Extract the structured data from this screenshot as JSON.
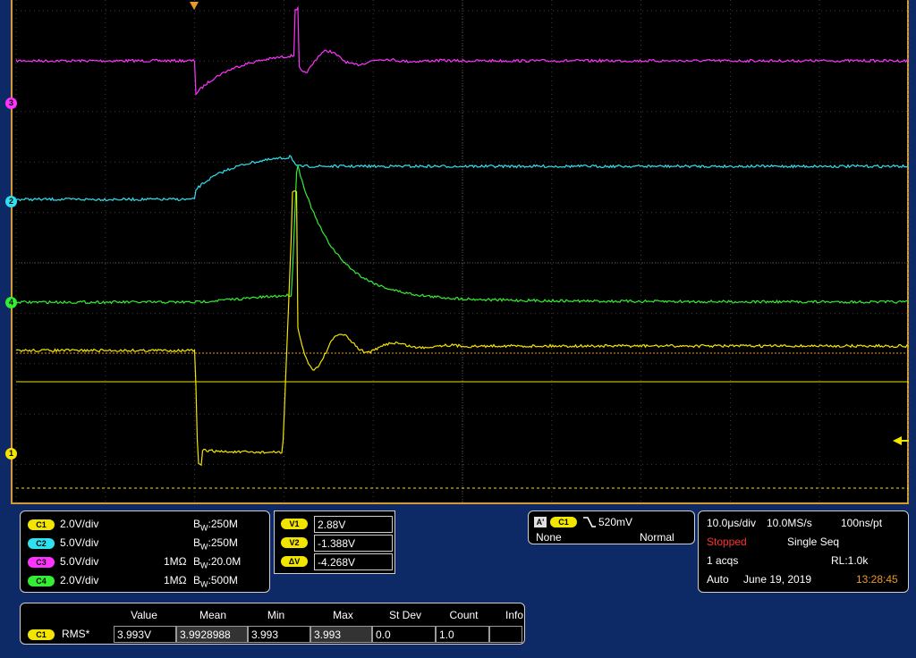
{
  "colors": {
    "ch1": "#f2e500",
    "ch2": "#2fe0f0",
    "ch3": "#ff33ff",
    "ch4": "#33ee33",
    "accent": "#e89a2a",
    "stopped": "#ff3030",
    "background": "#0d2a66"
  },
  "channel_markers": [
    {
      "label": "3"
    },
    {
      "label": "2"
    },
    {
      "label": "4"
    },
    {
      "label": "1"
    }
  ],
  "channels": [
    {
      "badge": "C1",
      "scale": "2.0V/div",
      "coupling": "",
      "bw_prefix": "B",
      "bw_sub": "W",
      "bw": ":250M"
    },
    {
      "badge": "C2",
      "scale": "5.0V/div",
      "coupling": "",
      "bw_prefix": "B",
      "bw_sub": "W",
      "bw": ":250M"
    },
    {
      "badge": "C3",
      "scale": "5.0V/div",
      "coupling": "1MΩ",
      "bw_prefix": "B",
      "bw_sub": "W",
      "bw": ":20.0M"
    },
    {
      "badge": "C4",
      "scale": "2.0V/div",
      "coupling": "1MΩ",
      "bw_prefix": "B",
      "bw_sub": "W",
      "bw": ":500M"
    }
  ],
  "cursors": [
    {
      "label": "V1",
      "value": "2.88V"
    },
    {
      "label": "V2",
      "value": "-1.388V"
    },
    {
      "label": "ΔV",
      "value": "-4.268V"
    }
  ],
  "trigger": {
    "badge_a": "A'",
    "badge_ch": "C1",
    "slope_icon": "falling-edge-icon",
    "level": "520mV",
    "source": "None",
    "mode": "Normal"
  },
  "acquisition": {
    "timebase": "10.0μs/div",
    "sample_rate": "10.0MS/s",
    "resolution": "100ns/pt",
    "state": "Stopped",
    "seq": "Single Seq",
    "acqs": "1 acqs",
    "record_length": "RL:1.0k",
    "mode": "Auto",
    "date": "June 19, 2019",
    "time": "13:28:45"
  },
  "measurements": {
    "headers": [
      "Value",
      "Mean",
      "Min",
      "Max",
      "St Dev",
      "Count",
      "Info"
    ],
    "row": {
      "badge": "C1",
      "name": "RMS*",
      "cells": [
        "3.993V",
        "3.9928988",
        "3.993",
        "3.993",
        "0.0",
        "1.0",
        ""
      ]
    }
  }
}
